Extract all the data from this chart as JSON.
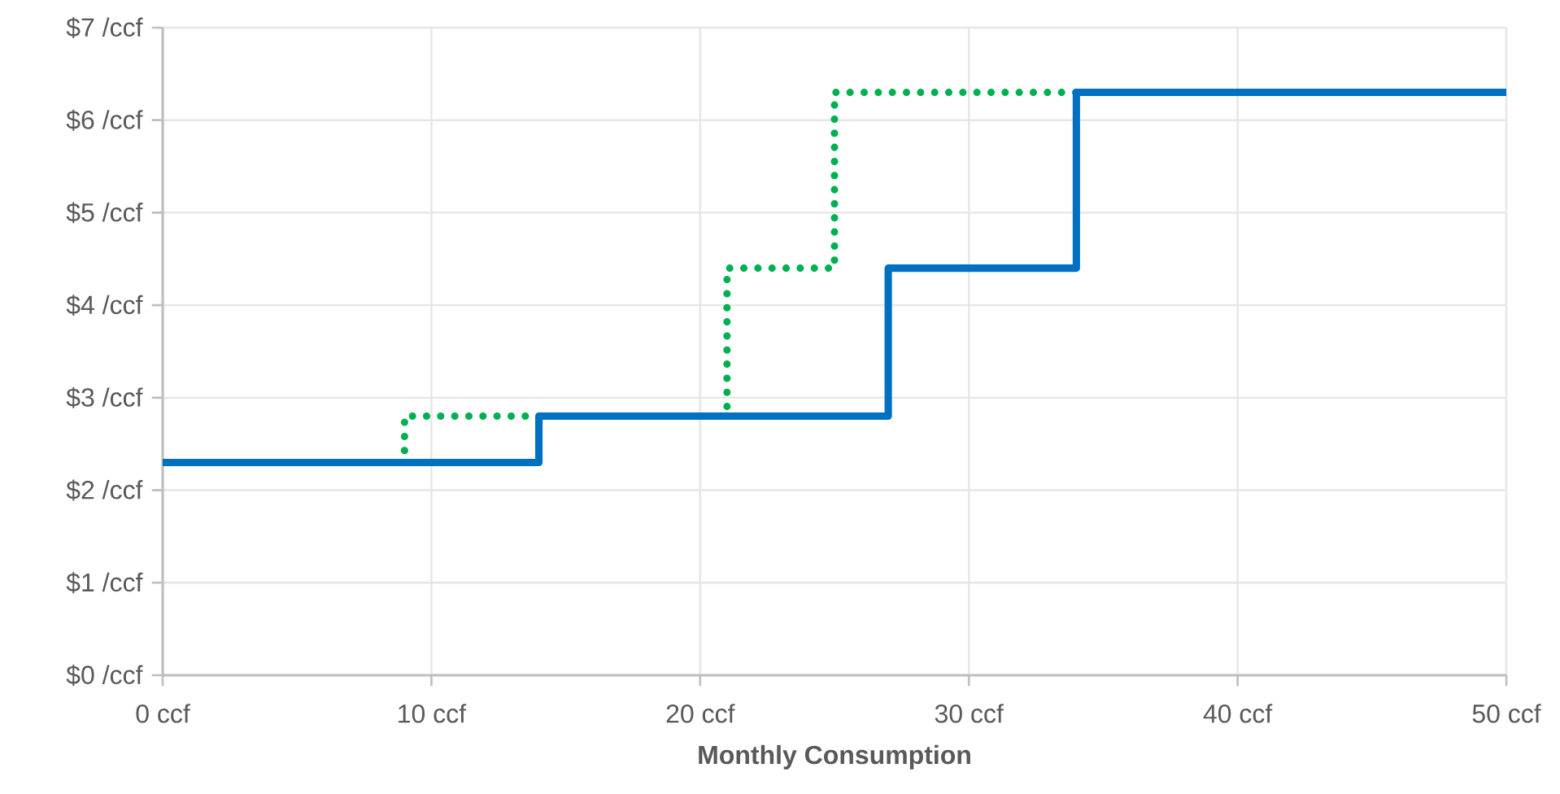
{
  "chart_data": {
    "type": "step",
    "xlabel": "Monthly Consumption",
    "xlim": [
      0,
      50
    ],
    "xticks": [
      {
        "value": 0,
        "label": "0 ccf"
      },
      {
        "value": 10,
        "label": "10 ccf"
      },
      {
        "value": 20,
        "label": "20 ccf"
      },
      {
        "value": 30,
        "label": "30 ccf"
      },
      {
        "value": 40,
        "label": "40 ccf"
      },
      {
        "value": 50,
        "label": "50 ccf"
      }
    ],
    "ylim": [
      0,
      7
    ],
    "yticks": [
      {
        "value": 0,
        "label": "$0 /ccf"
      },
      {
        "value": 1,
        "label": "$1 /ccf"
      },
      {
        "value": 2,
        "label": "$2 /ccf"
      },
      {
        "value": 3,
        "label": "$3 /ccf"
      },
      {
        "value": 4,
        "label": "$4 /ccf"
      },
      {
        "value": 5,
        "label": "$5 /ccf"
      },
      {
        "value": 6,
        "label": "$6 /ccf"
      },
      {
        "value": 7,
        "label": "$7 /ccf"
      }
    ],
    "grid": true,
    "series": [
      {
        "color": "#00b050",
        "line_style": "dotted",
        "x": [
          0,
          9,
          21,
          25,
          34
        ],
        "values": [
          2.3,
          2.8,
          4.4,
          6.3,
          6.3
        ]
      },
      {
        "color": "#0070c0",
        "line_style": "solid",
        "x": [
          0,
          14,
          27,
          34,
          50
        ],
        "values": [
          2.3,
          2.8,
          4.4,
          6.3,
          6.3
        ]
      }
    ]
  }
}
